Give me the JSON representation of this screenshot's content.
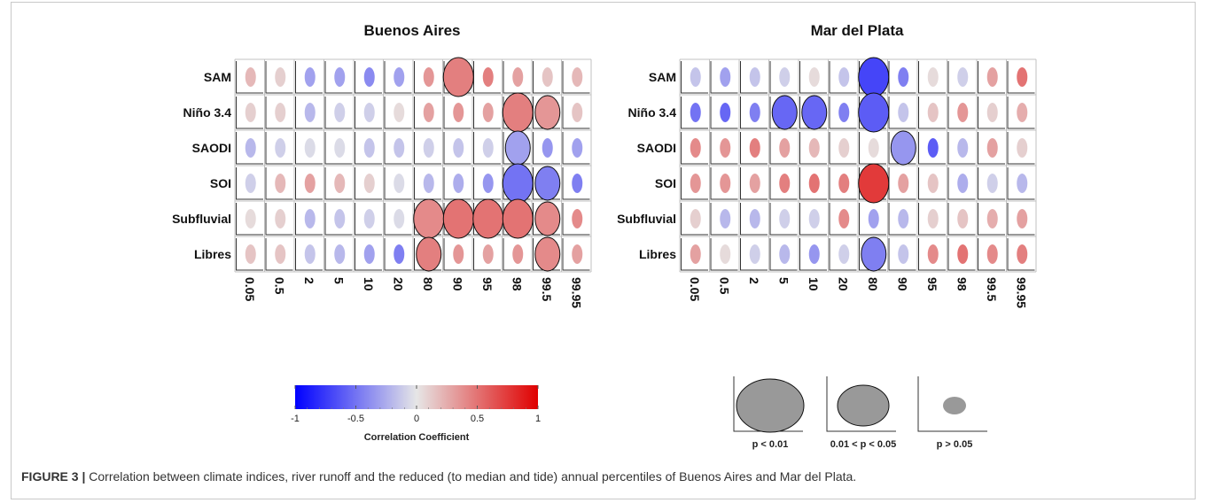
{
  "caption": {
    "label": "FIGURE 3 |",
    "text": "Correlation between climate indices, river runoff and the reduced (to median and tide) annual percentiles of Buenos Aires and Mar del Plata."
  },
  "chart_data": [
    {
      "type": "heatmap",
      "title": "Buenos Aires",
      "rows": [
        "SAM",
        "Niño 3.4",
        "SAODI",
        "SOI",
        "Subfluvial",
        "Libres"
      ],
      "columns": [
        "0.05",
        "0.5",
        "2",
        "5",
        "10",
        "20",
        "80",
        "90",
        "95",
        "98",
        "99.5",
        "99.95"
      ],
      "values": [
        [
          0.2,
          0.1,
          -0.3,
          -0.3,
          -0.4,
          -0.3,
          0.35,
          0.45,
          0.45,
          0.3,
          0.15,
          0.2
        ],
        [
          0.1,
          0.1,
          -0.2,
          -0.1,
          -0.1,
          0.05,
          0.3,
          0.35,
          0.3,
          0.45,
          0.35,
          0.15
        ],
        [
          -0.2,
          -0.1,
          -0.05,
          -0.05,
          -0.15,
          -0.15,
          -0.1,
          -0.15,
          -0.1,
          -0.3,
          -0.35,
          -0.3
        ],
        [
          -0.1,
          0.2,
          0.3,
          0.2,
          0.1,
          -0.05,
          -0.2,
          -0.25,
          -0.35,
          -0.5,
          -0.45,
          -0.45
        ],
        [
          0.05,
          0.1,
          -0.2,
          -0.15,
          -0.1,
          -0.05,
          0.4,
          0.5,
          0.5,
          0.5,
          0.4,
          0.4
        ],
        [
          0.15,
          0.15,
          -0.15,
          -0.2,
          -0.3,
          -0.45,
          0.45,
          0.35,
          0.3,
          0.35,
          0.4,
          0.3
        ]
      ],
      "significance": [
        [
          "n",
          "n",
          "n",
          "n",
          "n",
          "n",
          "n",
          "p01",
          "n",
          "n",
          "n",
          "n"
        ],
        [
          "n",
          "n",
          "n",
          "n",
          "n",
          "n",
          "n",
          "n",
          "n",
          "p01",
          "p05",
          "n"
        ],
        [
          "n",
          "n",
          "n",
          "n",
          "n",
          "n",
          "n",
          "n",
          "n",
          "p05",
          "n",
          "n"
        ],
        [
          "n",
          "n",
          "n",
          "n",
          "n",
          "n",
          "n",
          "n",
          "n",
          "p01",
          "p05",
          "n"
        ],
        [
          "n",
          "n",
          "n",
          "n",
          "n",
          "n",
          "p01",
          "p01",
          "p01",
          "p01",
          "p05",
          "n"
        ],
        [
          "n",
          "n",
          "n",
          "n",
          "n",
          "n",
          "p05",
          "n",
          "n",
          "n",
          "p05",
          "n"
        ]
      ]
    },
    {
      "type": "heatmap",
      "title": "Mar del Plata",
      "rows": [
        "SAM",
        "Niño 3.4",
        "SAODI",
        "SOI",
        "Subfluvial",
        "Libres"
      ],
      "columns": [
        "0.05",
        "0.5",
        "2",
        "5",
        "10",
        "20",
        "80",
        "90",
        "95",
        "98",
        "99.5",
        "99.95"
      ],
      "values": [
        [
          -0.15,
          -0.3,
          -0.15,
          -0.1,
          0.05,
          -0.15,
          -0.7,
          -0.45,
          0.05,
          -0.1,
          0.3,
          0.5
        ],
        [
          -0.5,
          -0.55,
          -0.45,
          -0.55,
          -0.55,
          -0.45,
          -0.6,
          -0.15,
          0.15,
          0.35,
          0.1,
          0.25
        ],
        [
          0.4,
          0.35,
          0.45,
          0.3,
          0.2,
          0.1,
          0.05,
          -0.35,
          -0.6,
          -0.2,
          0.3,
          0.1
        ],
        [
          0.35,
          0.35,
          0.3,
          0.45,
          0.5,
          0.45,
          0.75,
          0.3,
          0.15,
          -0.25,
          -0.1,
          -0.2
        ],
        [
          0.1,
          -0.2,
          -0.2,
          -0.1,
          -0.1,
          0.4,
          -0.3,
          -0.2,
          0.1,
          0.15,
          0.25,
          0.3
        ],
        [
          0.3,
          0.05,
          -0.1,
          -0.2,
          -0.35,
          -0.1,
          -0.45,
          -0.15,
          0.4,
          0.5,
          0.4,
          0.45
        ]
      ],
      "significance": [
        [
          "n",
          "n",
          "n",
          "n",
          "n",
          "n",
          "p01",
          "n",
          "n",
          "n",
          "n",
          "n"
        ],
        [
          "n",
          "n",
          "n",
          "p05",
          "p05",
          "n",
          "p01",
          "n",
          "n",
          "n",
          "n",
          "n"
        ],
        [
          "n",
          "n",
          "n",
          "n",
          "n",
          "n",
          "n",
          "p05",
          "n",
          "n",
          "n",
          "n"
        ],
        [
          "n",
          "n",
          "n",
          "n",
          "n",
          "n",
          "p01",
          "n",
          "n",
          "n",
          "n",
          "n"
        ],
        [
          "n",
          "n",
          "n",
          "n",
          "n",
          "n",
          "n",
          "n",
          "n",
          "n",
          "n",
          "n"
        ],
        [
          "n",
          "n",
          "n",
          "n",
          "n",
          "n",
          "p05",
          "n",
          "n",
          "n",
          "n",
          "n"
        ]
      ]
    }
  ],
  "colorbar": {
    "title": "Correlation Coefficient",
    "ticks": [
      "-1",
      "-0.5",
      "0",
      "0.5",
      "1"
    ],
    "range": [
      -1,
      1
    ],
    "color_low": "#0000ff",
    "color_mid": "#e6e6e6",
    "color_high": "#e00000"
  },
  "significance_key": [
    {
      "label": "p < 0.01",
      "size": "large"
    },
    {
      "label": "0.01 < p < 0.05",
      "size": "medium"
    },
    {
      "label": "p > 0.05",
      "size": "small"
    }
  ],
  "key_fill_color": "#999999"
}
